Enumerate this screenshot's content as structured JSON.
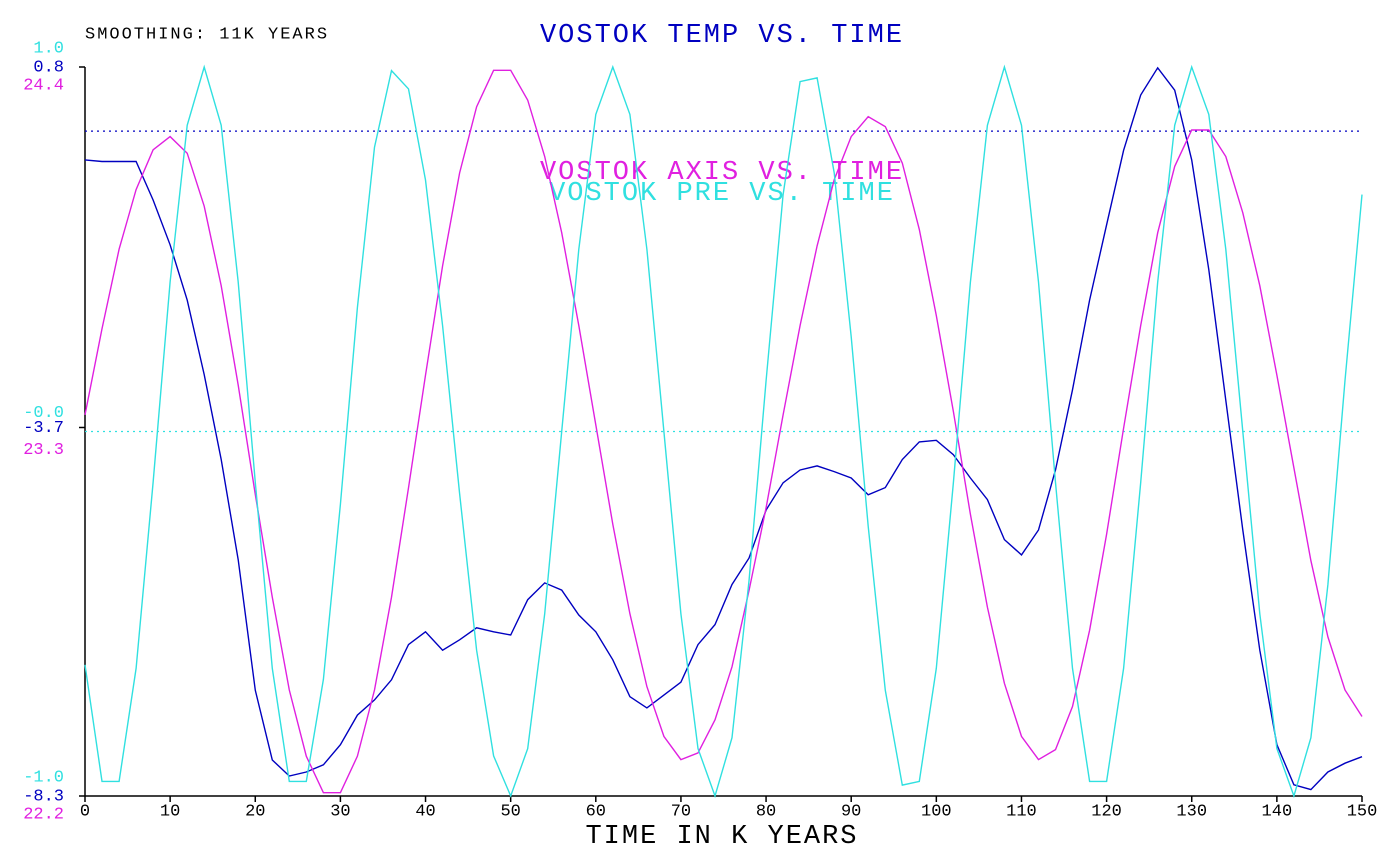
{
  "chart_data": {
    "type": "line",
    "annotation": "SMOOTHING: 11K YEARS",
    "xlabel": "TIME IN K YEARS",
    "xlim": [
      0,
      150
    ],
    "xticks": [
      0,
      10,
      20,
      30,
      40,
      50,
      60,
      70,
      80,
      90,
      100,
      110,
      120,
      130,
      140,
      150
    ],
    "ylim": [
      -8.3,
      0.8
    ],
    "yticks": [
      -8.3,
      -3.7,
      0.8
    ],
    "y2lim": [
      22.2,
      24.4
    ],
    "y2ticks": [
      22.2,
      23.3,
      24.4
    ],
    "y3lim": [
      -1.0,
      1.0
    ],
    "y3ticks": [
      {
        "value": -1.0,
        "label": "-1.0"
      },
      {
        "value": 0,
        "label": "-0.0"
      },
      {
        "value": 1.0,
        "label": "1.0"
      }
    ],
    "ref_lines": [
      {
        "axis": "y",
        "value": 0,
        "color": "#0000c0"
      },
      {
        "axis": "y3",
        "value": 0,
        "color": "#30e0e0"
      }
    ],
    "x": [
      0,
      2,
      4,
      6,
      8,
      10,
      12,
      14,
      16,
      18,
      20,
      22,
      24,
      26,
      28,
      30,
      32,
      34,
      36,
      38,
      40,
      42,
      44,
      46,
      48,
      50,
      52,
      54,
      56,
      58,
      60,
      62,
      64,
      66,
      68,
      70,
      72,
      74,
      76,
      78,
      80,
      82,
      84,
      86,
      88,
      90,
      92,
      94,
      96,
      98,
      100,
      102,
      104,
      106,
      108,
      110,
      112,
      114,
      116,
      118,
      120,
      122,
      124,
      126,
      128,
      130,
      132,
      134,
      136,
      138,
      140,
      142,
      144,
      146,
      148,
      150
    ],
    "series": [
      {
        "name": "VOSTOK TEMP VS. TIME",
        "color": "#0000c0",
        "axis": "y",
        "values": [
          -0.36,
          -0.38,
          -0.38,
          -0.38,
          -0.86,
          -1.42,
          -2.11,
          -3.04,
          -4.1,
          -5.35,
          -6.98,
          -7.85,
          -8.05,
          -8.0,
          -7.91,
          -7.66,
          -7.29,
          -7.1,
          -6.85,
          -6.41,
          -6.25,
          -6.48,
          -6.35,
          -6.2,
          -6.25,
          -6.29,
          -5.85,
          -5.64,
          -5.73,
          -6.04,
          -6.25,
          -6.6,
          -7.06,
          -7.2,
          -7.04,
          -6.88,
          -6.41,
          -6.16,
          -5.66,
          -5.33,
          -4.73,
          -4.39,
          -4.23,
          -4.18,
          -4.25,
          -4.33,
          -4.54,
          -4.45,
          -4.1,
          -3.88,
          -3.86,
          -4.04,
          -4.33,
          -4.6,
          -5.1,
          -5.29,
          -4.98,
          -4.23,
          -3.23,
          -2.11,
          -1.17,
          -0.24,
          0.45,
          0.79,
          0.51,
          -0.36,
          -1.73,
          -3.36,
          -4.98,
          -6.48,
          -7.66,
          -8.16,
          -8.22,
          -8.0,
          -7.89,
          -7.81
        ]
      },
      {
        "name": "VOSTOK AXIS VS. TIME",
        "color": "#e020e0",
        "axis": "y2",
        "values": [
          23.35,
          23.61,
          23.85,
          24.03,
          24.15,
          24.19,
          24.14,
          23.98,
          23.74,
          23.44,
          23.11,
          22.8,
          22.52,
          22.32,
          22.21,
          22.21,
          22.32,
          22.52,
          22.8,
          23.13,
          23.47,
          23.8,
          24.08,
          24.28,
          24.39,
          24.39,
          24.3,
          24.13,
          23.9,
          23.62,
          23.32,
          23.02,
          22.75,
          22.53,
          22.38,
          22.31,
          22.33,
          22.43,
          22.59,
          22.82,
          23.07,
          23.35,
          23.62,
          23.86,
          24.06,
          24.19,
          24.25,
          24.22,
          24.11,
          23.91,
          23.65,
          23.36,
          23.05,
          22.77,
          22.54,
          22.38,
          22.31,
          22.34,
          22.47,
          22.7,
          22.99,
          23.31,
          23.62,
          23.9,
          24.1,
          24.21,
          24.21,
          24.13,
          23.96,
          23.74,
          23.47,
          23.19,
          22.91,
          22.68,
          22.52,
          22.44
        ]
      },
      {
        "name": "VOSTOK PRE VS. TIME",
        "color": "#30e0e0",
        "axis": "y3",
        "values": [
          -0.64,
          -0.96,
          -0.96,
          -0.65,
          -0.14,
          0.41,
          0.84,
          1.0,
          0.84,
          0.41,
          -0.14,
          -0.65,
          -0.96,
          -0.96,
          -0.68,
          -0.2,
          0.34,
          0.78,
          0.99,
          0.94,
          0.69,
          0.29,
          -0.17,
          -0.6,
          -0.89,
          -1.0,
          -0.87,
          -0.5,
          0,
          0.5,
          0.87,
          1.0,
          0.87,
          0.5,
          0,
          -0.5,
          -0.87,
          -1.0,
          -0.84,
          -0.41,
          0.14,
          0.65,
          0.96,
          0.97,
          0.71,
          0.26,
          -0.26,
          -0.71,
          -0.97,
          -0.96,
          -0.65,
          -0.14,
          0.41,
          0.84,
          1.0,
          0.84,
          0.41,
          -0.14,
          -0.65,
          -0.96,
          -0.96,
          -0.65,
          -0.14,
          0.41,
          0.84,
          1.0,
          0.87,
          0.5,
          0,
          -0.5,
          -0.87,
          -1.0,
          -0.84,
          -0.42,
          0.14,
          0.65
        ]
      }
    ]
  }
}
